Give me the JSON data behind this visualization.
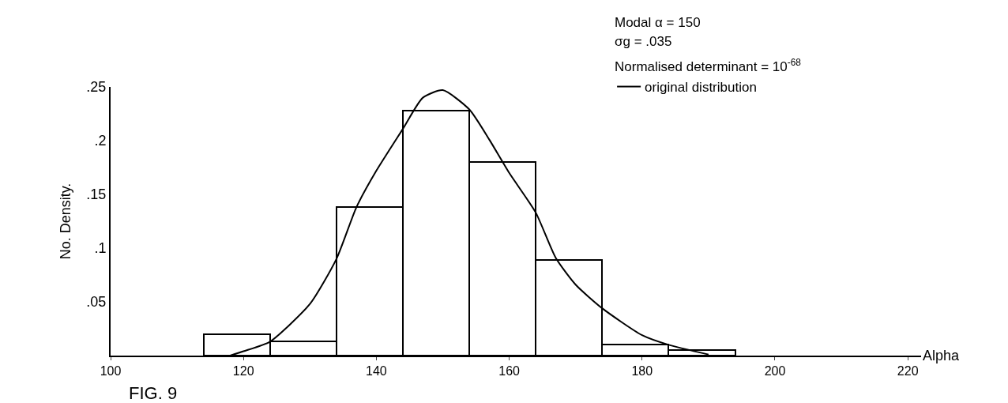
{
  "chart_data": {
    "type": "histogram",
    "xlabel": "Alpha",
    "ylabel": "No. Density.",
    "bins": [
      114,
      124,
      134,
      144,
      154,
      164,
      174,
      184,
      194
    ],
    "values": [
      0.02,
      0.013,
      0.138,
      0.228,
      0.18,
      0.089,
      0.01,
      0.005
    ],
    "series": [
      {
        "type": "line",
        "name": "original distribution",
        "color": "#000000",
        "x": [
          118,
          120,
          124,
          130,
          134,
          137,
          140,
          144,
          147,
          150,
          154,
          157,
          160,
          164,
          167,
          170,
          174,
          180,
          184,
          190
        ],
        "values": [
          0,
          0.004,
          0.013,
          0.048,
          0.09,
          0.138,
          0.172,
          0.211,
          0.24,
          0.247,
          0.229,
          0.201,
          0.17,
          0.133,
          0.091,
          0.066,
          0.044,
          0.019,
          0.01,
          0.001
        ]
      }
    ],
    "xlim": [
      100,
      222
    ],
    "xticks": [
      100,
      120,
      140,
      160,
      180,
      200,
      220
    ],
    "ylim": [
      0,
      0.25
    ],
    "yticks": [
      {
        "value": 0.05,
        "label": ".05"
      },
      {
        "value": 0.1,
        "label": ".1"
      },
      {
        "value": 0.15,
        "label": ".15"
      },
      {
        "value": 0.2,
        "label": ".2"
      },
      {
        "value": 0.25,
        "label": ".25"
      }
    ],
    "annotations": [
      "Modal α = 150",
      "σg = .035",
      "Normalised determinant = 10$^{-68}$",
      "FIG. 9"
    ],
    "legend": "top right"
  }
}
